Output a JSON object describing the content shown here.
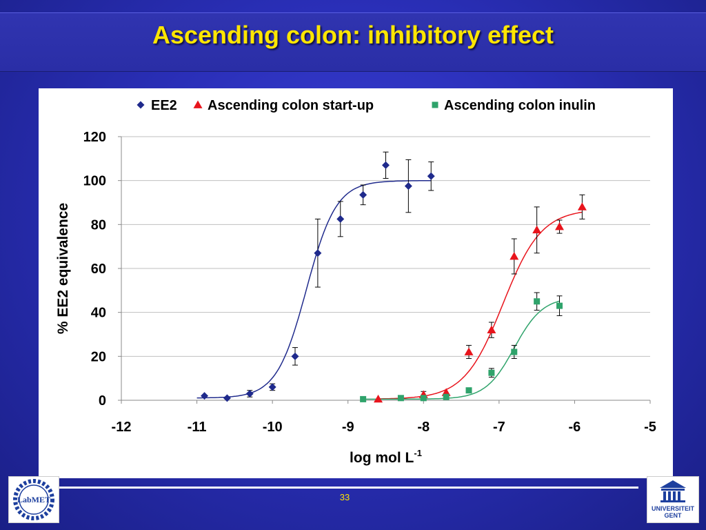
{
  "slide": {
    "title": "Ascending colon: inhibitory effect",
    "page_number": "33",
    "logo_left_text": "LabMET",
    "logo_right_line1": "UNIVERSITEIT",
    "logo_right_line2": "GENT"
  },
  "colors": {
    "background": "#2a2fb8",
    "title": "#ffe600",
    "ee2": "#1f2a8c",
    "startup": "#e8141c",
    "inulin": "#2fa36b"
  },
  "chart_data": {
    "type": "scatter",
    "title": "",
    "xlabel": "log mol L",
    "xlabel_sup": "-1",
    "ylabel": "% EE2 equivalence",
    "xlim": [
      -12,
      -5
    ],
    "ylim": [
      0,
      120
    ],
    "x_ticks": [
      "-12",
      "-11",
      "-10",
      "-9",
      "-8",
      "-7",
      "-6",
      "-5"
    ],
    "y_ticks": [
      "0",
      "20",
      "40",
      "60",
      "80",
      "100",
      "120"
    ],
    "grid": "horizontal",
    "legend_position": "top",
    "series": [
      {
        "name": "EE2",
        "marker": "diamond",
        "color": "#1f2a8c",
        "points": [
          {
            "x": -10.9,
            "y": 2,
            "err": 0
          },
          {
            "x": -10.6,
            "y": 1,
            "err": 0
          },
          {
            "x": -10.3,
            "y": 3,
            "err": 1.5
          },
          {
            "x": -10.0,
            "y": 6,
            "err": 1.5
          },
          {
            "x": -9.7,
            "y": 20,
            "err": 4
          },
          {
            "x": -9.4,
            "y": 67,
            "err": 15.5
          },
          {
            "x": -9.1,
            "y": 82.5,
            "err": 8
          },
          {
            "x": -8.8,
            "y": 93.5,
            "err": 4.5
          },
          {
            "x": -8.5,
            "y": 107,
            "err": 6
          },
          {
            "x": -8.2,
            "y": 97.5,
            "err": 12
          },
          {
            "x": -7.9,
            "y": 102,
            "err": 6.5
          }
        ],
        "fit": {
          "bottom": 1,
          "top": 100,
          "logEC50": -9.55,
          "hill": 2.2,
          "x_start": -11,
          "x_end": -7.9
        }
      },
      {
        "name": "Ascending colon start-up",
        "marker": "triangle",
        "color": "#e8141c",
        "points": [
          {
            "x": -8.6,
            "y": 0.5,
            "err": 0
          },
          {
            "x": -8.0,
            "y": 2.5,
            "err": 1.5
          },
          {
            "x": -7.7,
            "y": 3.5,
            "err": 0
          },
          {
            "x": -7.4,
            "y": 22,
            "err": 3
          },
          {
            "x": -7.1,
            "y": 32,
            "err": 3.5
          },
          {
            "x": -6.8,
            "y": 65.5,
            "err": 8
          },
          {
            "x": -6.5,
            "y": 77.5,
            "err": 10.5
          },
          {
            "x": -6.2,
            "y": 79,
            "err": 3
          },
          {
            "x": -5.9,
            "y": 88,
            "err": 5.5
          }
        ],
        "fit": {
          "bottom": 0.5,
          "top": 87,
          "logEC50": -6.95,
          "hill": 1.7,
          "x_start": -8.6,
          "x_end": -5.9
        }
      },
      {
        "name": "Ascending colon inulin",
        "marker": "square",
        "color": "#2fa36b",
        "points": [
          {
            "x": -8.8,
            "y": 0.5,
            "err": 0
          },
          {
            "x": -8.3,
            "y": 1,
            "err": 0
          },
          {
            "x": -8.0,
            "y": 1,
            "err": 0
          },
          {
            "x": -7.7,
            "y": 1.5,
            "err": 0
          },
          {
            "x": -7.4,
            "y": 4.5,
            "err": 0
          },
          {
            "x": -7.1,
            "y": 12.5,
            "err": 2
          },
          {
            "x": -6.8,
            "y": 22,
            "err": 3
          },
          {
            "x": -6.5,
            "y": 45,
            "err": 4
          },
          {
            "x": -6.2,
            "y": 43,
            "err": 4.5
          }
        ],
        "fit": {
          "bottom": 0.5,
          "top": 47,
          "logEC50": -6.8,
          "hill": 2.3,
          "x_start": -8.8,
          "x_end": -6.2
        }
      }
    ]
  }
}
